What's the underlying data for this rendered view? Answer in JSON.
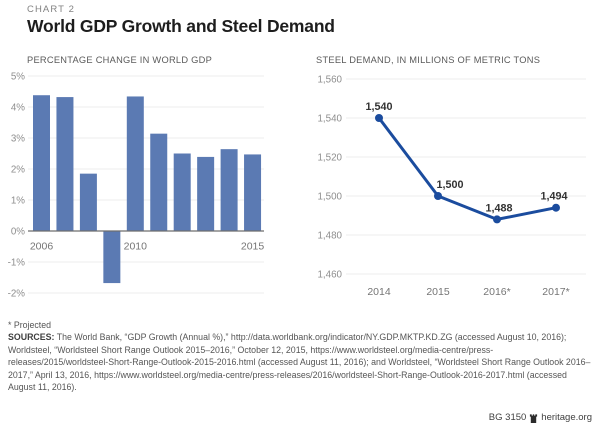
{
  "header": {
    "kicker": "CHART 2",
    "title": "World GDP Growth and Steel Demand"
  },
  "chart_data": [
    {
      "type": "bar",
      "title": "PERCENTAGE CHANGE IN WORLD GDP",
      "categories": [
        "2006",
        "2007",
        "2008",
        "2009",
        "2010",
        "2011",
        "2012",
        "2013",
        "2014",
        "2015"
      ],
      "values": [
        4.38,
        4.32,
        1.85,
        -1.68,
        4.34,
        3.14,
        2.5,
        2.39,
        2.64,
        2.47
      ],
      "ylim": [
        -2,
        5
      ],
      "ytick_values": [
        5,
        4,
        3,
        2,
        1,
        0,
        -1,
        -2
      ],
      "ytick_labels": [
        "5%",
        "4%",
        "3%",
        "2%",
        "1%",
        "0%",
        "-1%",
        "-2%"
      ],
      "xticks_shown": [
        {
          "index": 0,
          "label": "2006"
        },
        {
          "index": 4,
          "label": "2010"
        },
        {
          "index": 9,
          "label": "2015"
        }
      ],
      "bar_color": "#5b7ab3",
      "grid": true,
      "legend": "none"
    },
    {
      "type": "line",
      "title": "STEEL DEMAND, IN MILLIONS OF METRIC TONS",
      "categories": [
        "2014",
        "2015",
        "2016*",
        "2017*"
      ],
      "values": [
        1540,
        1500,
        1488,
        1494
      ],
      "point_labels": [
        "1,540",
        "1,500",
        "1,488",
        "1,494"
      ],
      "ylim": [
        1460,
        1560
      ],
      "ytick_values": [
        1560,
        1540,
        1520,
        1500,
        1480,
        1460
      ],
      "ytick_labels": [
        "1,560",
        "1,540",
        "1,520",
        "1,500",
        "1,480",
        "1,460"
      ],
      "line_color": "#1b4c9e",
      "grid": true,
      "legend": "none"
    }
  ],
  "footnote": "* Projected",
  "sources": {
    "label": "SOURCES:",
    "text": " The World Bank, “GDP Growth (Annual %),” http://data.worldbank.org/indicator/NY.GDP.MKTP.KD.ZG (accessed August 10, 2016); Worldsteel, “Worldsteel Short Range Outlook 2015–2016,” October 12, 2015, https://www.worldsteel.org/media-centre/press-releases/2015/worldsteel-Short-Range-Outlook-2015-2016.html (accessed August 11, 2016); and Worldsteel, “Worldsteel Short Range Outlook 2016–2017,” April 13, 2016, https://www.worldsteel.org/media-centre/press-releases/2016/worldsteel-Short-Range-Outlook-2016-2017.html (accessed August 11, 2016)."
  },
  "footer_right": {
    "doc_id": "BG 3150",
    "site": "heritage.org",
    "icon": "heritage-tower-icon"
  },
  "colors": {
    "bar": "#5b7ab3",
    "line": "#1b4c9e",
    "gridline": "#ececec",
    "axis": "#6e6e6e",
    "tick_text": "#8e8e8e",
    "xlabel_text": "#757575",
    "datalabel_text": "#333333"
  }
}
